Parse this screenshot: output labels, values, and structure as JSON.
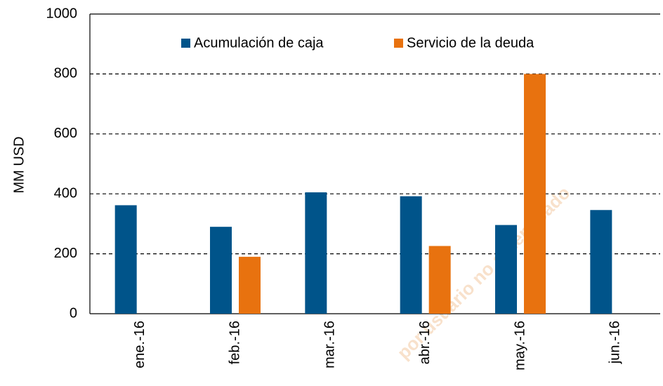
{
  "chart_data": {
    "type": "bar",
    "categories": [
      "ene.-16",
      "feb.-16",
      "mar.-16",
      "abr.-16",
      "may.-16",
      "jun.-16"
    ],
    "series": [
      {
        "name": "Acumulación de caja",
        "color": "#00548a",
        "values": [
          362,
          290,
          405,
          392,
          296,
          346
        ]
      },
      {
        "name": "Servicio de la deuda",
        "color": "#e8720f",
        "values": [
          null,
          190,
          null,
          226,
          800,
          null
        ]
      }
    ],
    "ylabel": "MM USD",
    "ylim": [
      0,
      1000
    ],
    "yticks": [
      0,
      200,
      400,
      600,
      800,
      1000
    ],
    "grid": true,
    "legend": "top",
    "watermark": "por usuario no autenticado"
  }
}
